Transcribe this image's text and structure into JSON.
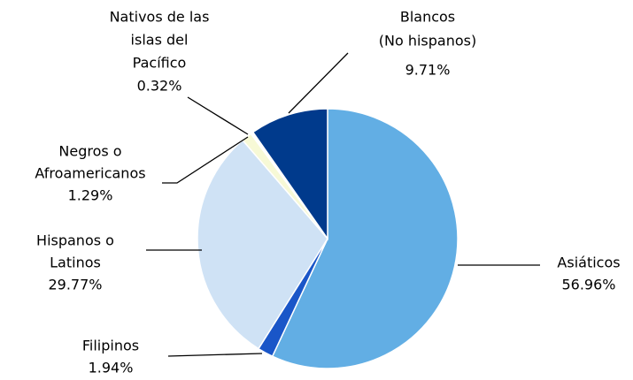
{
  "chart_data": {
    "type": "pie",
    "categories": [
      [
        "Asiáticos"
      ],
      [
        "Filipinos"
      ],
      [
        "Hispanos o",
        "Latinos"
      ],
      [
        "Negros o",
        "Afroamericanos"
      ],
      [
        "Nativos de las",
        "islas del",
        "Pacífico"
      ],
      [
        "Blancos",
        "(No hispanos)"
      ]
    ],
    "values": [
      56.96,
      1.94,
      29.77,
      1.29,
      0.32,
      9.71
    ],
    "value_labels": [
      "56.96%",
      "1.94%",
      "29.77%",
      "1.29%",
      "0.32%",
      "9.71%"
    ],
    "colors": [
      "#62aee4",
      "#1a56c8",
      "#cfe2f5",
      "#f7f9d6",
      "#ffffff",
      "#003a8c"
    ]
  }
}
